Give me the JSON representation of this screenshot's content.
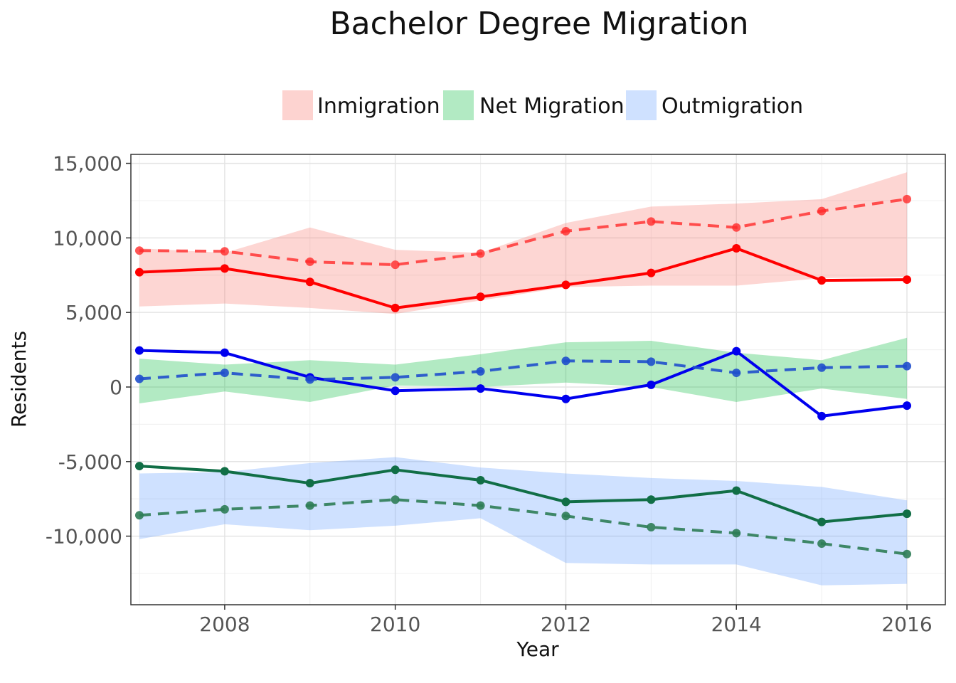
{
  "chart_data": {
    "type": "line",
    "title": "Bachelor Degree Migration",
    "xlabel": "Year",
    "ylabel": "Residents",
    "xlim": [
      2006.9,
      2016.45
    ],
    "ylim": [
      -14600,
      15600
    ],
    "x_ticks": [
      2008,
      2010,
      2012,
      2014,
      2016
    ],
    "x_tick_labels": [
      "2008",
      "2010",
      "2012",
      "2014",
      "2016"
    ],
    "y_ticks": [
      15000,
      10000,
      5000,
      0,
      -5000,
      -10000
    ],
    "y_tick_labels": [
      "15,000",
      "10,000",
      "5,000",
      "0",
      "-5,000",
      "-10,000"
    ],
    "grid": true,
    "legend_position": "top",
    "legend": [
      {
        "label": "Inmigration",
        "color": "#f8766d"
      },
      {
        "label": "Net Migration",
        "color": "#00ba38"
      },
      {
        "label": "Outmigration",
        "color": "#619cff"
      }
    ],
    "x": [
      2007,
      2008,
      2009,
      2010,
      2011,
      2012,
      2013,
      2014,
      2015,
      2016
    ],
    "bands": [
      {
        "name": "Inmigration",
        "color": "#f8766d",
        "lower": [
          5400,
          5600,
          5300,
          4900,
          5800,
          6700,
          6800,
          6800,
          7300,
          7400
        ],
        "upper": [
          9300,
          9000,
          10700,
          9200,
          9000,
          11000,
          12100,
          12300,
          12600,
          14400
        ]
      },
      {
        "name": "Net Migration",
        "color": "#00ba38",
        "lower": [
          -1100,
          -300,
          -1000,
          100,
          0,
          300,
          0,
          -1000,
          -100,
          -800
        ],
        "upper": [
          1900,
          1500,
          1800,
          1500,
          2200,
          3000,
          3100,
          2300,
          1800,
          3300
        ]
      },
      {
        "name": "Outmigration",
        "color": "#619cff",
        "lower": [
          -10200,
          -9200,
          -9600,
          -9300,
          -8800,
          -11800,
          -11900,
          -11900,
          -13300,
          -13200
        ],
        "upper": [
          -5800,
          -5700,
          -5100,
          -4700,
          -5400,
          -5800,
          -6100,
          -6300,
          -6700,
          -7600
        ]
      }
    ],
    "series": [
      {
        "color": "#ff0000",
        "dash": false,
        "values": [
          7700,
          7950,
          7050,
          5300,
          6050,
          6850,
          7650,
          9300,
          7150,
          7200
        ]
      },
      {
        "color": "#ff2a2a",
        "dash": true,
        "opacity": 0.8,
        "values": [
          9150,
          9100,
          8400,
          8200,
          8950,
          10450,
          11100,
          10700,
          11800,
          12600
        ]
      },
      {
        "color": "#0000ee",
        "dash": false,
        "values": [
          2450,
          2300,
          650,
          -250,
          -100,
          -800,
          150,
          2400,
          -1950,
          -1250
        ]
      },
      {
        "color": "#1f4fcc",
        "dash": true,
        "opacity": 0.9,
        "values": [
          550,
          950,
          500,
          650,
          1050,
          1750,
          1700,
          950,
          1300,
          1400
        ]
      },
      {
        "color": "#116e46",
        "dash": false,
        "values": [
          -5300,
          -5650,
          -6450,
          -5550,
          -6250,
          -7700,
          -7550,
          -6950,
          -9050,
          -8500
        ]
      },
      {
        "color": "#2e7d57",
        "dash": true,
        "opacity": 0.9,
        "values": [
          -8600,
          -8200,
          -7950,
          -7550,
          -7950,
          -8650,
          -9400,
          -9800,
          -10500,
          -11200
        ]
      }
    ]
  }
}
